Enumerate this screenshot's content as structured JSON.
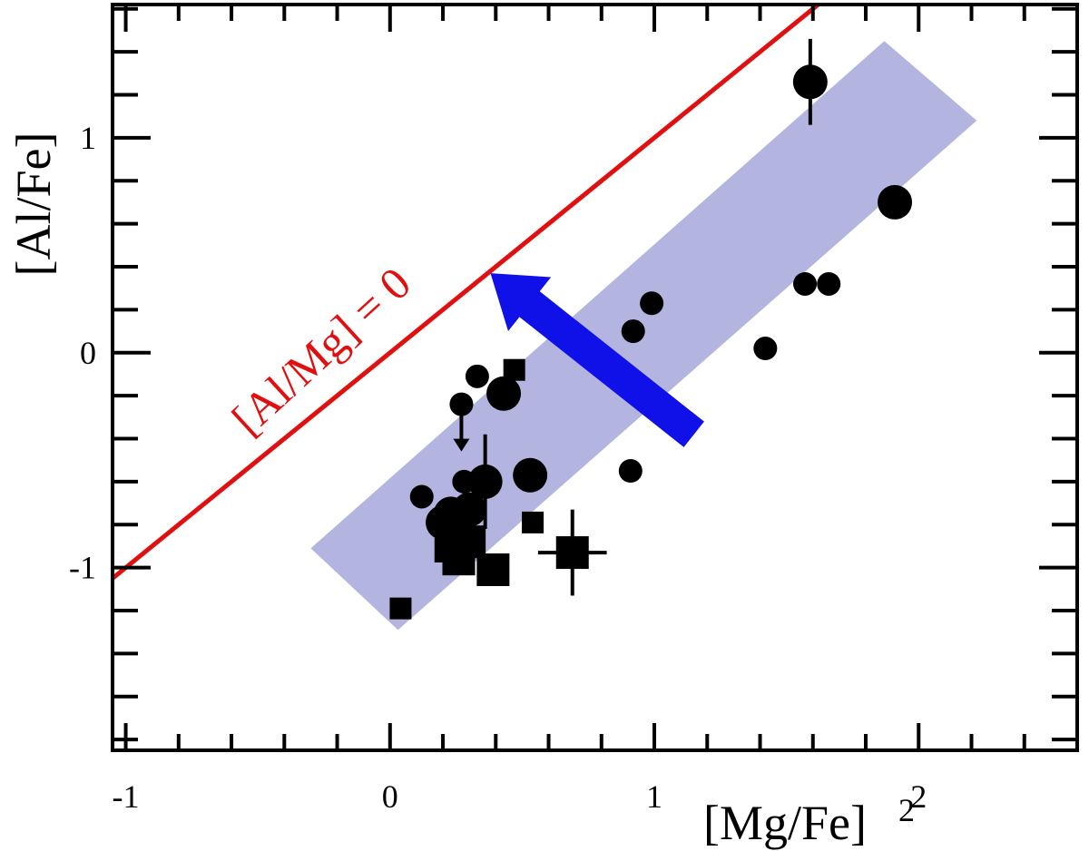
{
  "chart_data": {
    "type": "scatter",
    "title": "",
    "xlabel": "[Mg/Fe]",
    "ylabel": "[Al/Fe]",
    "xlim": [
      -1.05,
      2.6
    ],
    "ylim": [
      -1.85,
      1.62
    ],
    "x_tick_labels": [
      "-1",
      "0",
      "1",
      "2"
    ],
    "y_tick_labels": [
      "-1",
      "0",
      "1"
    ],
    "x_ticks": [
      -1,
      0,
      1,
      2
    ],
    "y_ticks": [
      -1,
      0,
      1
    ],
    "grid": false,
    "reference_line": {
      "label": "[Al/Mg] = 0",
      "color": "#e01010",
      "x": [
        -1.05,
        1.67
      ],
      "y": [
        -1.05,
        1.67
      ]
    },
    "band": {
      "color": "#b3b5e0",
      "corners": [
        [
          -0.3,
          -0.91
        ],
        [
          0.03,
          -1.29
        ],
        [
          2.22,
          1.08
        ],
        [
          1.87,
          1.45
        ]
      ]
    },
    "arrow": {
      "color": "#1010e8",
      "from": [
        1.15,
        -0.38
      ],
      "to": [
        0.38,
        0.37
      ]
    },
    "series": [
      {
        "marker": "circle",
        "color": "#000000",
        "points": [
          {
            "x": 1.59,
            "y": 1.26,
            "size": "large",
            "yerr": 0.2
          },
          {
            "x": 1.91,
            "y": 0.7,
            "size": "large"
          },
          {
            "x": 1.57,
            "y": 0.32,
            "size": "small"
          },
          {
            "x": 1.66,
            "y": 0.32,
            "size": "small"
          },
          {
            "x": 1.42,
            "y": 0.02,
            "size": "small"
          },
          {
            "x": 0.99,
            "y": 0.23,
            "size": "small"
          },
          {
            "x": 0.92,
            "y": 0.1,
            "size": "small"
          },
          {
            "x": 0.91,
            "y": -0.55,
            "size": "small"
          },
          {
            "x": 0.33,
            "y": -0.11,
            "size": "small"
          },
          {
            "x": 0.27,
            "y": -0.24,
            "size": "small",
            "upper_limit": true
          },
          {
            "x": 0.43,
            "y": -0.19,
            "size": "large"
          },
          {
            "x": 0.53,
            "y": -0.57,
            "size": "large"
          },
          {
            "x": 0.36,
            "y": -0.6,
            "size": "large",
            "yerr": 0.22
          },
          {
            "x": 0.28,
            "y": -0.6,
            "size": "small"
          },
          {
            "x": 0.12,
            "y": -0.67,
            "size": "small"
          },
          {
            "x": 0.23,
            "y": -0.75,
            "size": "large"
          },
          {
            "x": 0.3,
            "y": -0.73,
            "size": "large"
          },
          {
            "x": 0.2,
            "y": -0.79,
            "size": "large"
          }
        ]
      },
      {
        "marker": "square",
        "color": "#000000",
        "points": [
          {
            "x": 0.47,
            "y": -0.08,
            "size": "small"
          },
          {
            "x": 0.54,
            "y": -0.79,
            "size": "small"
          },
          {
            "x": 0.69,
            "y": -0.93,
            "size": "large",
            "xerr": 0.13,
            "yerr": 0.2
          },
          {
            "x": 0.39,
            "y": -1.01,
            "size": "large"
          },
          {
            "x": 0.23,
            "y": -0.9,
            "size": "large"
          },
          {
            "x": 0.3,
            "y": -0.88,
            "size": "large"
          },
          {
            "x": 0.26,
            "y": -0.96,
            "size": "large"
          },
          {
            "x": 0.04,
            "y": -1.19,
            "size": "small"
          }
        ]
      }
    ]
  }
}
